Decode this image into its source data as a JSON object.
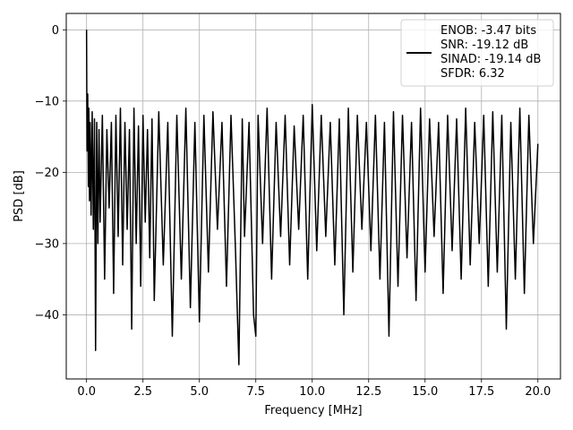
{
  "chart_data": {
    "type": "line",
    "xlabel": "Frequency [MHz]",
    "ylabel": "PSD [dB]",
    "xlim": [
      -0.9,
      21.0
    ],
    "ylim": [
      -49.0,
      2.3
    ],
    "x_ticks": [
      0.0,
      2.5,
      5.0,
      7.5,
      10.0,
      12.5,
      15.0,
      17.5,
      20.0
    ],
    "x_tick_labels": [
      "0.0",
      "2.5",
      "5.0",
      "7.5",
      "10.0",
      "12.5",
      "15.0",
      "17.5",
      "20.0"
    ],
    "y_ticks": [
      0,
      -10,
      -20,
      -30,
      -40
    ],
    "y_tick_labels": [
      "0",
      "−10",
      "−20",
      "−30",
      "−40"
    ],
    "grid": true,
    "legend_position": "top-right",
    "line_color": "#000000",
    "series": [
      {
        "x": [
          0.0,
          0.02,
          0.05,
          0.08,
          0.1,
          0.13,
          0.16,
          0.2,
          0.25,
          0.3,
          0.35,
          0.4,
          0.45,
          0.5,
          0.55,
          0.6,
          0.7,
          0.8,
          0.9,
          1.0,
          1.1,
          1.2,
          1.3,
          1.4,
          1.5,
          1.6,
          1.7,
          1.8,
          1.9,
          2.0,
          2.1,
          2.2,
          2.3,
          2.4,
          2.5,
          2.6,
          2.7,
          2.8,
          2.9,
          3.0,
          3.2,
          3.4,
          3.6,
          3.8,
          4.0,
          4.2,
          4.4,
          4.6,
          4.8,
          5.0,
          5.2,
          5.4,
          5.6,
          5.8,
          6.0,
          6.2,
          6.4,
          6.6,
          6.75,
          6.9,
          7.0,
          7.2,
          7.4,
          7.5,
          7.6,
          7.8,
          8.0,
          8.2,
          8.4,
          8.6,
          8.8,
          9.0,
          9.2,
          9.4,
          9.6,
          9.8,
          10.0,
          10.2,
          10.4,
          10.6,
          10.8,
          11.0,
          11.2,
          11.4,
          11.6,
          11.8,
          12.0,
          12.2,
          12.4,
          12.6,
          12.8,
          13.0,
          13.2,
          13.4,
          13.6,
          13.8,
          14.0,
          14.2,
          14.4,
          14.6,
          14.8,
          15.0,
          15.2,
          15.4,
          15.6,
          15.8,
          16.0,
          16.2,
          16.4,
          16.6,
          16.8,
          17.0,
          17.2,
          17.4,
          17.6,
          17.8,
          18.0,
          18.2,
          18.4,
          18.6,
          18.8,
          19.0,
          19.2,
          19.4,
          19.6,
          19.8,
          20.0
        ],
        "values": [
          0.0,
          -17.0,
          -9.0,
          -22.0,
          -11.0,
          -24.0,
          -13.0,
          -26.0,
          -11.5,
          -28.0,
          -12.5,
          -45.0,
          -13.0,
          -30.0,
          -14.0,
          -27.0,
          -12.0,
          -35.0,
          -14.0,
          -25.0,
          -13.0,
          -37.0,
          -12.0,
          -29.0,
          -11.0,
          -33.0,
          -13.0,
          -28.0,
          -14.0,
          -42.0,
          -11.0,
          -30.0,
          -13.5,
          -36.0,
          -12.0,
          -27.0,
          -14.0,
          -32.0,
          -12.5,
          -38.0,
          -11.5,
          -33.0,
          -13.0,
          -43.0,
          -12.0,
          -35.0,
          -11.0,
          -39.0,
          -13.0,
          -41.0,
          -12.0,
          -34.0,
          -11.5,
          -28.0,
          -13.0,
          -36.0,
          -12.0,
          -31.0,
          -47.0,
          -12.5,
          -29.0,
          -13.0,
          -40.0,
          -43.0,
          -12.0,
          -30.0,
          -11.0,
          -35.0,
          -13.0,
          -29.0,
          -12.0,
          -33.0,
          -13.5,
          -28.0,
          -12.0,
          -35.0,
          -10.5,
          -31.0,
          -12.0,
          -29.0,
          -13.0,
          -33.0,
          -12.5,
          -40.0,
          -11.0,
          -34.0,
          -12.0,
          -28.0,
          -13.0,
          -31.0,
          -12.0,
          -35.0,
          -13.0,
          -43.0,
          -11.5,
          -36.0,
          -12.0,
          -32.0,
          -13.0,
          -38.0,
          -11.0,
          -34.0,
          -12.5,
          -29.0,
          -13.0,
          -37.0,
          -12.0,
          -31.0,
          -12.5,
          -35.0,
          -11.0,
          -33.0,
          -13.0,
          -30.0,
          -12.0,
          -36.0,
          -11.5,
          -34.0,
          -12.0,
          -42.0,
          -13.0,
          -35.0,
          -11.0,
          -37.0,
          -12.0,
          -30.0,
          -16.0
        ]
      }
    ],
    "legend": {
      "lines": [
        "ENOB: -3.47 bits",
        "SNR: -19.12 dB",
        "SINAD: -19.14 dB",
        "SFDR: 6.32"
      ]
    }
  }
}
